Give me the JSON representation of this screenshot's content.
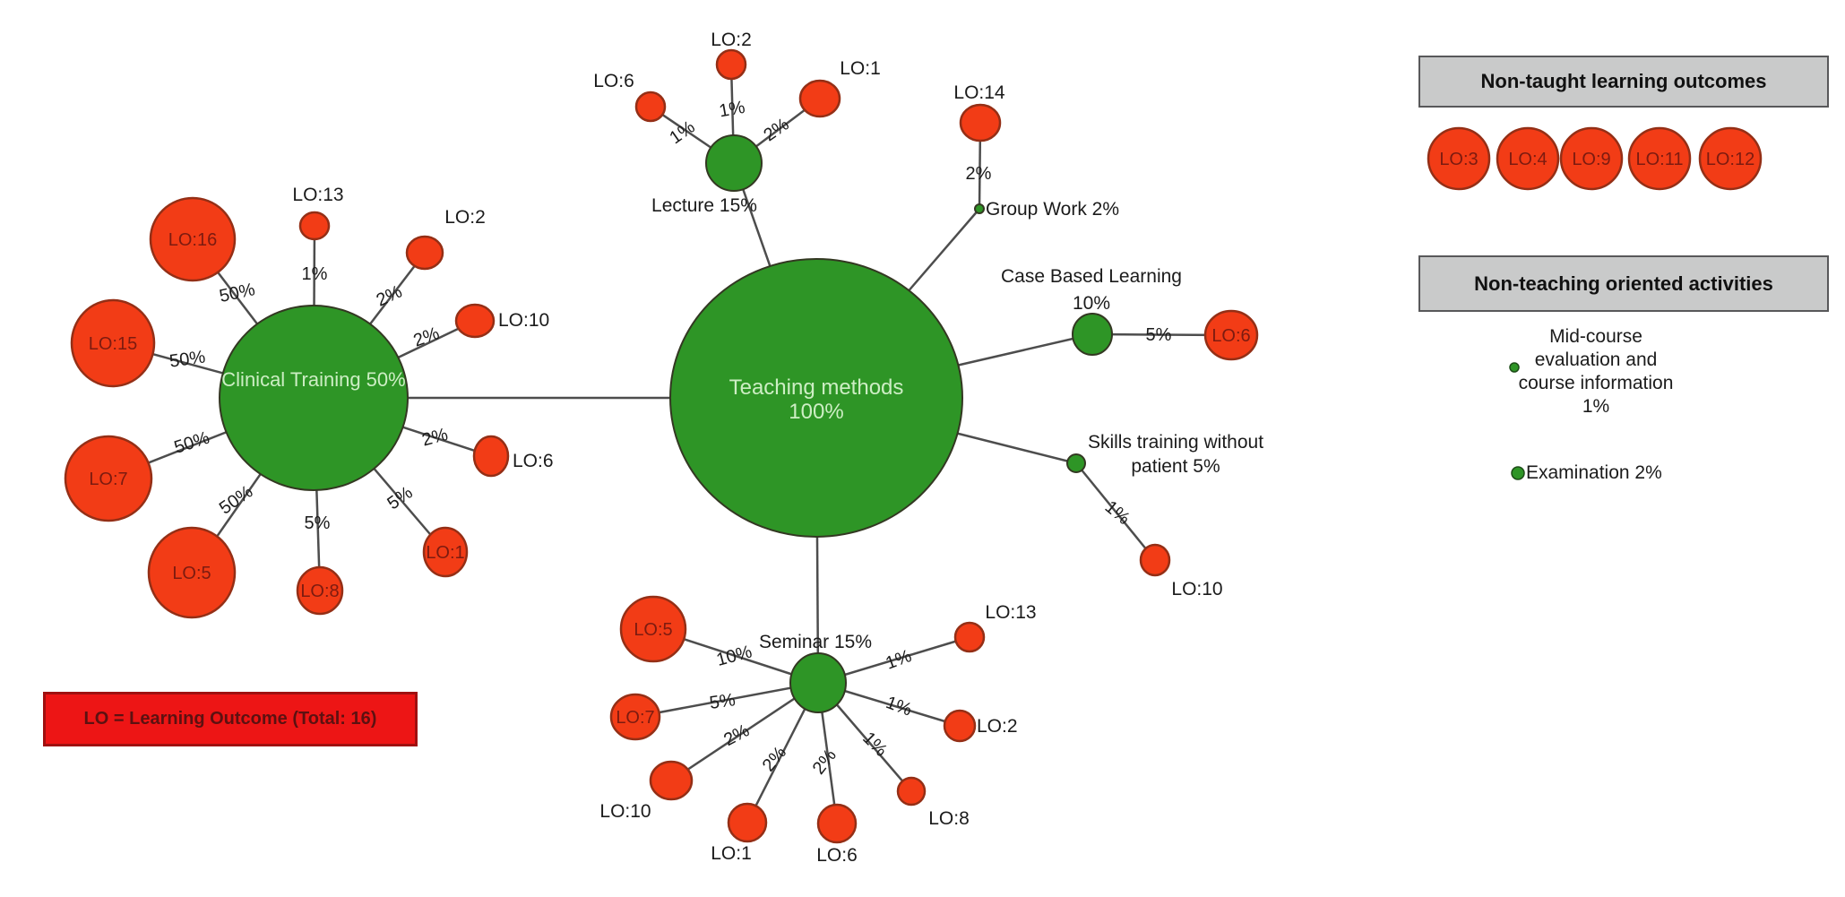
{
  "network": {
    "root": {
      "label_lines": [
        "Teaching methods",
        "100%"
      ]
    },
    "activities": [
      {
        "id": "clinical",
        "label_lines": [
          "Clinical Training 50%"
        ],
        "outcomes": [
          {
            "lo": "LO:16",
            "weight": "50%"
          },
          {
            "lo": "LO:13",
            "weight": "1%"
          },
          {
            "lo": "LO:2",
            "weight": "2%"
          },
          {
            "lo": "LO:10",
            "weight": "2%"
          },
          {
            "lo": "LO:15",
            "weight": "50%"
          },
          {
            "lo": "LO:7",
            "weight": "50%"
          },
          {
            "lo": "LO:5",
            "weight": "50%"
          },
          {
            "lo": "LO:8",
            "weight": "5%"
          },
          {
            "lo": "LO:1",
            "weight": "5%"
          },
          {
            "lo": "LO:6",
            "weight": "2%"
          }
        ]
      },
      {
        "id": "lecture",
        "label_lines": [
          "Lecture 15%"
        ],
        "outcomes": [
          {
            "lo": "LO:6",
            "weight": "1%"
          },
          {
            "lo": "LO:2",
            "weight": "1%"
          },
          {
            "lo": "LO:1",
            "weight": "2%"
          }
        ]
      },
      {
        "id": "groupwork",
        "label_lines": [
          "Group Work 2%"
        ],
        "outcomes": [
          {
            "lo": "LO:14",
            "weight": "2%"
          }
        ]
      },
      {
        "id": "cbl",
        "label_lines": [
          "Case Based Learning",
          "10%"
        ],
        "outcomes": [
          {
            "lo": "LO:6",
            "weight": "5%"
          }
        ]
      },
      {
        "id": "skills",
        "label_lines": [
          "Skills training without",
          "patient 5%"
        ],
        "outcomes": [
          {
            "lo": "LO:10",
            "weight": "1%"
          }
        ]
      },
      {
        "id": "seminar",
        "label_lines": [
          "Seminar 15%"
        ],
        "outcomes": [
          {
            "lo": "LO:5",
            "weight": "10%"
          },
          {
            "lo": "LO:7",
            "weight": "5%"
          },
          {
            "lo": "LO:10",
            "weight": "2%"
          },
          {
            "lo": "LO:1",
            "weight": "2%"
          },
          {
            "lo": "LO:6",
            "weight": "2%"
          },
          {
            "lo": "LO:8",
            "weight": "1%"
          },
          {
            "lo": "LO:2",
            "weight": "1%"
          },
          {
            "lo": "LO:13",
            "weight": "1%"
          }
        ]
      }
    ]
  },
  "side_panel": {
    "non_taught": {
      "title": "Non-taught learning outcomes",
      "outcomes": [
        "LO:3",
        "LO:4",
        "LO:9",
        "LO:11",
        "LO:12"
      ]
    },
    "non_teaching": {
      "title": "Non-teaching oriented activities",
      "activities": [
        {
          "label_lines": [
            "Mid-course",
            "evaluation and",
            "course information",
            "1%"
          ]
        },
        {
          "label_lines": [
            "Examination 2%"
          ]
        }
      ]
    }
  },
  "legend": {
    "label": "LO = Learning Outcome (Total: 16)"
  },
  "colors": {
    "activity_fill": "#2e9526",
    "activity_stroke": "#333822",
    "activity_inner_text": "#cdeec4",
    "outcome_fill": "#f23c16",
    "outcome_stroke": "#942f16",
    "outcome_text": "#7c1b10",
    "edge": "#4d4d4d",
    "label_text": "#1b1b1b",
    "header_fill": "#c9caca",
    "legend_fill": "#ed1515",
    "legend_text": "#5c1111",
    "background": "#ffffff"
  }
}
